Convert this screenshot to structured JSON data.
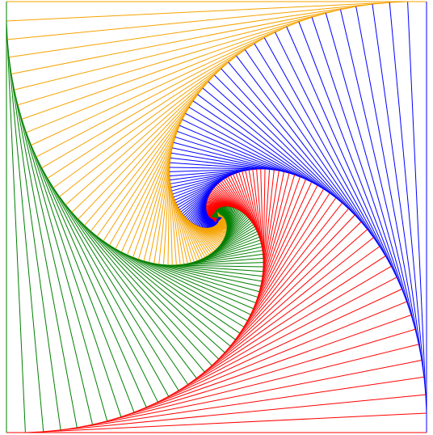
{
  "figure": {
    "kind": "pursuit-curve",
    "description_visible_text": "",
    "colors": {
      "orange": "#f5a300",
      "blue": "#0000ff",
      "red": "#ff0000",
      "green": "#007f00",
      "background": "#ffffff"
    },
    "bugs": [
      {
        "name": "orange",
        "color": "#f5a300",
        "start_corner": "top-right"
      },
      {
        "name": "blue",
        "color": "#0000ff",
        "start_corner": "bottom-right"
      },
      {
        "name": "red",
        "color": "#ff0000",
        "start_corner": "bottom-left"
      },
      {
        "name": "green",
        "color": "#007f00",
        "start_corner": "top-left"
      }
    ]
  }
}
